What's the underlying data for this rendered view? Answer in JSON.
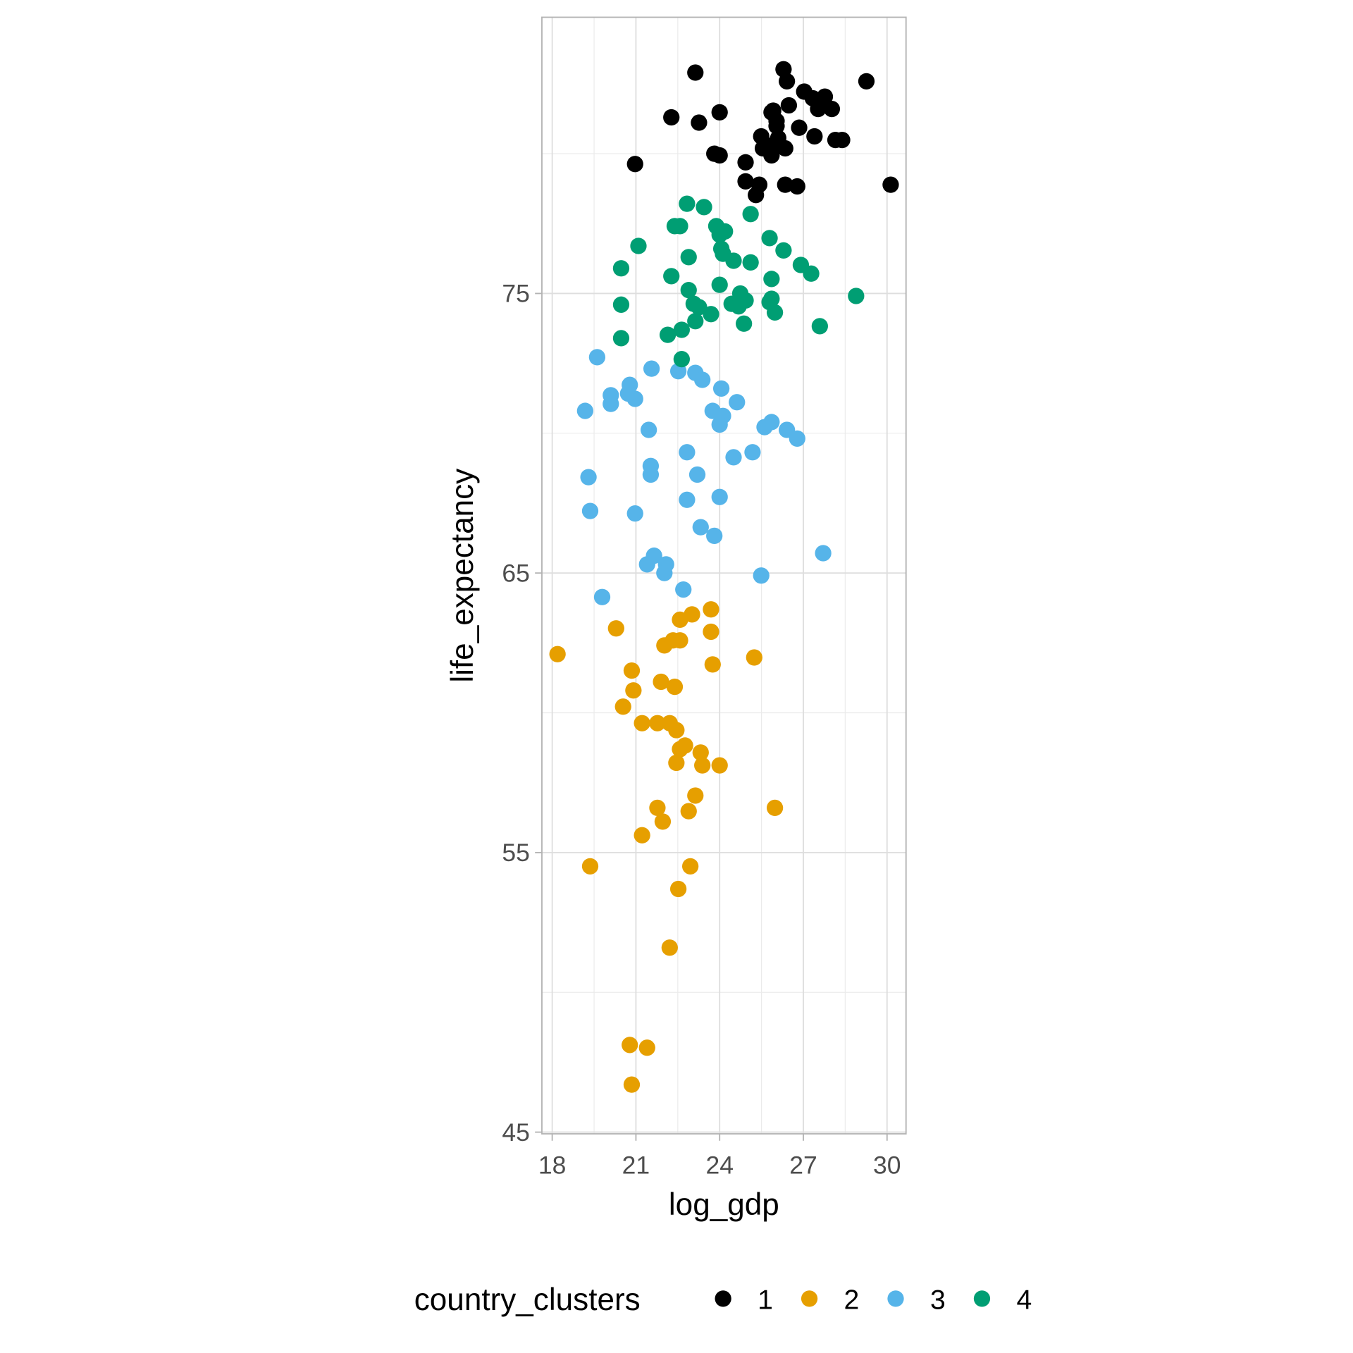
{
  "chart_data": {
    "type": "scatter",
    "xlabel": "log_gdp",
    "ylabel": "life_expectancy",
    "xlim": [
      17.63,
      30.68
    ],
    "ylim": [
      44.94,
      84.88
    ],
    "x_ticks": [
      18,
      21,
      24,
      27,
      30
    ],
    "y_ticks": [
      45,
      55,
      65,
      75
    ],
    "x_minor": [
      19.5,
      22.5,
      25.5,
      28.5
    ],
    "y_minor": [
      50,
      60,
      70,
      80
    ],
    "grid": true,
    "legend": {
      "title": "country_clusters",
      "position": "bottom"
    },
    "series": [
      {
        "name": "1",
        "color": "#000000",
        "points": [
          [
            23.13,
            82.9
          ],
          [
            26.29,
            83.02
          ],
          [
            26.41,
            82.59
          ],
          [
            29.26,
            82.59
          ],
          [
            27.03,
            82.22
          ],
          [
            27.34,
            81.98
          ],
          [
            27.77,
            82.04
          ],
          [
            26.48,
            81.73
          ],
          [
            25.92,
            81.54
          ],
          [
            27.53,
            81.6
          ],
          [
            28.02,
            81.6
          ],
          [
            22.27,
            81.3
          ],
          [
            24.0,
            81.48
          ],
          [
            23.26,
            81.11
          ],
          [
            26.04,
            80.99
          ],
          [
            26.85,
            80.93
          ],
          [
            25.49,
            80.62
          ],
          [
            26.1,
            80.56
          ],
          [
            27.4,
            80.62
          ],
          [
            28.15,
            80.49
          ],
          [
            28.39,
            80.49
          ],
          [
            25.55,
            80.19
          ],
          [
            25.92,
            80.31
          ],
          [
            26.35,
            80.19
          ],
          [
            25.86,
            79.94
          ],
          [
            23.81,
            80.0
          ],
          [
            24.0,
            79.94
          ],
          [
            24.93,
            79.69
          ],
          [
            20.97,
            79.63
          ],
          [
            24.93,
            79.01
          ],
          [
            25.42,
            78.89
          ],
          [
            25.3,
            78.52
          ],
          [
            26.35,
            78.89
          ],
          [
            26.78,
            78.83
          ],
          [
            30.13,
            78.89
          ],
          [
            25.86,
            81.48
          ],
          [
            26.04,
            81.17
          ]
        ]
      },
      {
        "name": "2",
        "color": "#E69F00",
        "points": [
          [
            18.19,
            62.1
          ],
          [
            20.29,
            63.02
          ],
          [
            22.58,
            63.33
          ],
          [
            23.01,
            63.52
          ],
          [
            23.69,
            63.7
          ],
          [
            23.69,
            62.9
          ],
          [
            22.02,
            62.41
          ],
          [
            22.33,
            62.59
          ],
          [
            22.58,
            62.59
          ],
          [
            25.24,
            61.98
          ],
          [
            20.85,
            61.51
          ],
          [
            23.75,
            61.73
          ],
          [
            21.9,
            61.11
          ],
          [
            22.39,
            60.93
          ],
          [
            20.91,
            60.8
          ],
          [
            20.54,
            60.22
          ],
          [
            21.22,
            59.63
          ],
          [
            21.77,
            59.63
          ],
          [
            22.21,
            59.63
          ],
          [
            22.45,
            59.38
          ],
          [
            22.58,
            58.7
          ],
          [
            22.76,
            58.83
          ],
          [
            23.32,
            58.58
          ],
          [
            22.45,
            58.21
          ],
          [
            23.38,
            58.12
          ],
          [
            24.0,
            58.12
          ],
          [
            23.13,
            57.04
          ],
          [
            25.98,
            56.6
          ],
          [
            21.77,
            56.6
          ],
          [
            22.89,
            56.48
          ],
          [
            21.96,
            56.11
          ],
          [
            21.22,
            55.62
          ],
          [
            19.36,
            54.51
          ],
          [
            22.95,
            54.51
          ],
          [
            22.52,
            53.7
          ],
          [
            22.21,
            51.6
          ],
          [
            20.78,
            48.12
          ],
          [
            21.4,
            48.02
          ],
          [
            20.85,
            46.7
          ]
        ]
      },
      {
        "name": "3",
        "color": "#56B4E9",
        "points": [
          [
            19.61,
            72.72
          ],
          [
            21.56,
            72.31
          ],
          [
            22.52,
            72.22
          ],
          [
            23.13,
            72.16
          ],
          [
            23.38,
            71.91
          ],
          [
            20.78,
            71.73
          ],
          [
            20.1,
            71.36
          ],
          [
            20.1,
            71.05
          ],
          [
            20.97,
            71.23
          ],
          [
            20.72,
            71.42
          ],
          [
            24.06,
            71.6
          ],
          [
            24.62,
            71.11
          ],
          [
            19.18,
            70.8
          ],
          [
            23.75,
            70.8
          ],
          [
            24.12,
            70.62
          ],
          [
            24.0,
            70.31
          ],
          [
            21.46,
            70.12
          ],
          [
            25.61,
            70.22
          ],
          [
            25.86,
            70.4
          ],
          [
            26.41,
            70.12
          ],
          [
            26.78,
            69.81
          ],
          [
            22.83,
            69.32
          ],
          [
            25.18,
            69.32
          ],
          [
            24.5,
            69.14
          ],
          [
            19.3,
            68.43
          ],
          [
            21.53,
            68.83
          ],
          [
            21.53,
            68.52
          ],
          [
            23.2,
            68.52
          ],
          [
            22.83,
            67.62
          ],
          [
            24.0,
            67.72
          ],
          [
            19.36,
            67.22
          ],
          [
            20.97,
            67.13
          ],
          [
            23.32,
            66.64
          ],
          [
            23.81,
            66.33
          ],
          [
            27.71,
            65.71
          ],
          [
            21.65,
            65.62
          ],
          [
            21.4,
            65.31
          ],
          [
            22.08,
            65.31
          ],
          [
            22.02,
            65.0
          ],
          [
            25.49,
            64.91
          ],
          [
            22.7,
            64.41
          ],
          [
            19.79,
            64.14
          ]
        ]
      },
      {
        "name": "4",
        "color": "#009E73",
        "points": [
          [
            22.83,
            78.21
          ],
          [
            23.44,
            78.09
          ],
          [
            22.39,
            77.41
          ],
          [
            22.58,
            77.41
          ],
          [
            23.88,
            77.41
          ],
          [
            24.19,
            77.22
          ],
          [
            24.0,
            77.1
          ],
          [
            25.11,
            77.84
          ],
          [
            25.79,
            76.98
          ],
          [
            21.09,
            76.7
          ],
          [
            22.89,
            76.3
          ],
          [
            24.06,
            76.6
          ],
          [
            24.12,
            76.42
          ],
          [
            24.5,
            76.17
          ],
          [
            25.11,
            76.11
          ],
          [
            26.29,
            76.54
          ],
          [
            20.47,
            75.9
          ],
          [
            22.27,
            75.62
          ],
          [
            26.91,
            76.02
          ],
          [
            27.28,
            75.71
          ],
          [
            25.86,
            75.52
          ],
          [
            22.89,
            75.12
          ],
          [
            24.0,
            75.31
          ],
          [
            24.74,
            75.0
          ],
          [
            24.93,
            74.75
          ],
          [
            28.89,
            74.91
          ],
          [
            20.47,
            74.6
          ],
          [
            23.07,
            74.63
          ],
          [
            23.26,
            74.51
          ],
          [
            24.43,
            74.63
          ],
          [
            24.68,
            74.54
          ],
          [
            25.79,
            74.69
          ],
          [
            25.86,
            74.81
          ],
          [
            23.69,
            74.26
          ],
          [
            25.98,
            74.32
          ],
          [
            23.13,
            74.01
          ],
          [
            24.87,
            73.92
          ],
          [
            27.59,
            73.83
          ],
          [
            20.47,
            73.4
          ],
          [
            22.14,
            73.52
          ],
          [
            22.64,
            73.7
          ],
          [
            22.64,
            72.65
          ]
        ]
      }
    ]
  }
}
